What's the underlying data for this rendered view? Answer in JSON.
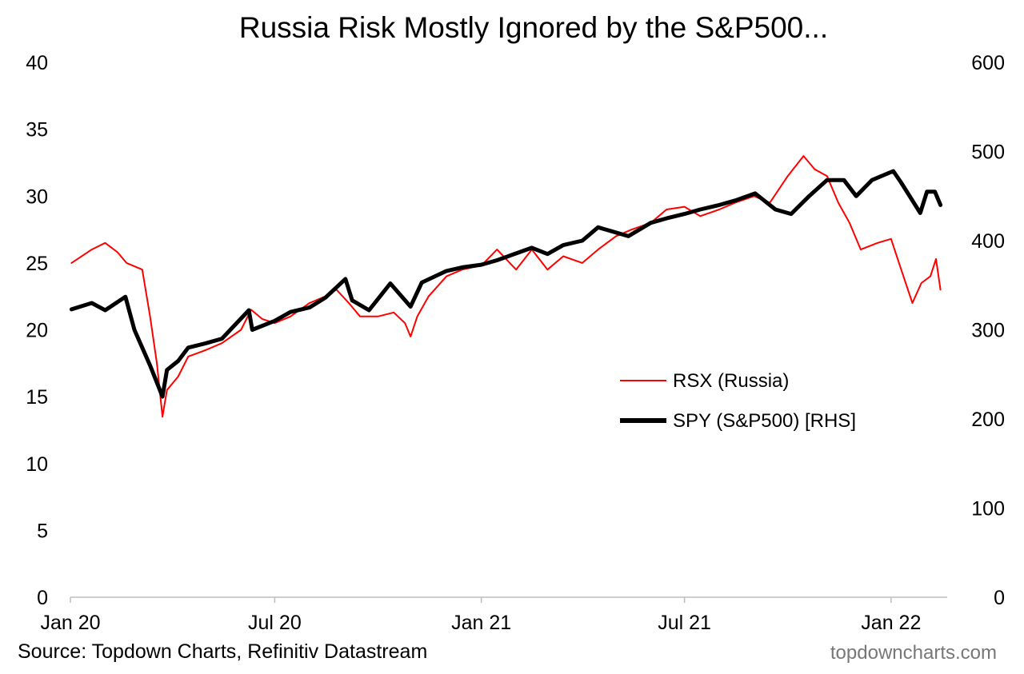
{
  "chart_data": {
    "type": "line",
    "title": "Russia Risk Mostly Ignored by the S&P500...",
    "x_tick_labels": [
      "Jan 20",
      "Jul 20",
      "Jan 21",
      "Jul 21",
      "Jan 22"
    ],
    "y_left": {
      "range": [
        0,
        40
      ],
      "ticks": [
        "0",
        "5",
        "10",
        "15",
        "20",
        "25",
        "30",
        "35",
        "40"
      ]
    },
    "y_right": {
      "range": [
        0,
        600
      ],
      "ticks": [
        "0",
        "100",
        "200",
        "300",
        "400",
        "500",
        "600"
      ]
    },
    "grid": false,
    "legend_position": "right-middle",
    "series": [
      {
        "name": "RSX (Russia)",
        "axis": "left",
        "color": "#ff0000",
        "points": [
          [
            "2020-01-02",
            25.0
          ],
          [
            "2020-01-20",
            26.0
          ],
          [
            "2020-02-01",
            26.5
          ],
          [
            "2020-02-12",
            25.8
          ],
          [
            "2020-02-20",
            25.0
          ],
          [
            "2020-03-05",
            24.5
          ],
          [
            "2020-03-12",
            21.0
          ],
          [
            "2020-03-18",
            17.5
          ],
          [
            "2020-03-23",
            13.5
          ],
          [
            "2020-03-27",
            15.5
          ],
          [
            "2020-04-06",
            16.5
          ],
          [
            "2020-04-15",
            18.0
          ],
          [
            "2020-05-01",
            18.5
          ],
          [
            "2020-05-15",
            19.0
          ],
          [
            "2020-06-01",
            20.0
          ],
          [
            "2020-06-10",
            21.5
          ],
          [
            "2020-06-20",
            20.8
          ],
          [
            "2020-07-01",
            20.5
          ],
          [
            "2020-07-15",
            21.0
          ],
          [
            "2020-08-01",
            22.0
          ],
          [
            "2020-08-15",
            22.5
          ],
          [
            "2020-08-25",
            23.0
          ],
          [
            "2020-09-05",
            22.0
          ],
          [
            "2020-09-15",
            21.0
          ],
          [
            "2020-10-01",
            21.0
          ],
          [
            "2020-10-15",
            21.3
          ],
          [
            "2020-10-25",
            20.5
          ],
          [
            "2020-10-30",
            19.5
          ],
          [
            "2020-11-05",
            21.0
          ],
          [
            "2020-11-15",
            22.5
          ],
          [
            "2020-12-01",
            24.0
          ],
          [
            "2020-12-15",
            24.5
          ],
          [
            "2021-01-01",
            24.8
          ],
          [
            "2021-01-15",
            26.0
          ],
          [
            "2021-02-01",
            24.5
          ],
          [
            "2021-02-15",
            26.0
          ],
          [
            "2021-03-01",
            24.5
          ],
          [
            "2021-03-15",
            25.5
          ],
          [
            "2021-04-01",
            25.0
          ],
          [
            "2021-04-15",
            26.0
          ],
          [
            "2021-05-01",
            27.0
          ],
          [
            "2021-05-15",
            27.5
          ],
          [
            "2021-06-01",
            28.0
          ],
          [
            "2021-06-15",
            29.0
          ],
          [
            "2021-07-01",
            29.2
          ],
          [
            "2021-07-15",
            28.5
          ],
          [
            "2021-08-01",
            29.0
          ],
          [
            "2021-08-15",
            29.5
          ],
          [
            "2021-09-01",
            30.0
          ],
          [
            "2021-09-15",
            29.5
          ],
          [
            "2021-10-01",
            31.5
          ],
          [
            "2021-10-15",
            33.0
          ],
          [
            "2021-10-25",
            32.0
          ],
          [
            "2021-11-05",
            31.5
          ],
          [
            "2021-11-15",
            29.5
          ],
          [
            "2021-11-25",
            28.0
          ],
          [
            "2021-12-05",
            26.0
          ],
          [
            "2021-12-20",
            26.5
          ],
          [
            "2022-01-01",
            26.8
          ],
          [
            "2022-01-10",
            24.5
          ],
          [
            "2022-01-20",
            22.0
          ],
          [
            "2022-01-28",
            23.5
          ],
          [
            "2022-02-05",
            24.0
          ],
          [
            "2022-02-10",
            25.3
          ],
          [
            "2022-02-14",
            23.0
          ]
        ]
      },
      {
        "name": "SPY (S&P500) [RHS]",
        "axis": "right",
        "color": "#000000",
        "points": [
          [
            "2020-01-02",
            323
          ],
          [
            "2020-01-20",
            330
          ],
          [
            "2020-02-01",
            322
          ],
          [
            "2020-02-19",
            337
          ],
          [
            "2020-02-27",
            300
          ],
          [
            "2020-03-12",
            260
          ],
          [
            "2020-03-23",
            225
          ],
          [
            "2020-03-27",
            255
          ],
          [
            "2020-04-06",
            265
          ],
          [
            "2020-04-15",
            280
          ],
          [
            "2020-05-01",
            285
          ],
          [
            "2020-05-15",
            290
          ],
          [
            "2020-06-08",
            322
          ],
          [
            "2020-06-11",
            300
          ],
          [
            "2020-07-01",
            310
          ],
          [
            "2020-07-15",
            320
          ],
          [
            "2020-08-01",
            325
          ],
          [
            "2020-08-15",
            336
          ],
          [
            "2020-09-02",
            357
          ],
          [
            "2020-09-08",
            333
          ],
          [
            "2020-09-23",
            322
          ],
          [
            "2020-10-12",
            352
          ],
          [
            "2020-10-30",
            326
          ],
          [
            "2020-11-09",
            353
          ],
          [
            "2020-12-01",
            366
          ],
          [
            "2020-12-15",
            370
          ],
          [
            "2021-01-01",
            373
          ],
          [
            "2021-01-15",
            378
          ],
          [
            "2021-02-15",
            392
          ],
          [
            "2021-03-01",
            385
          ],
          [
            "2021-03-15",
            395
          ],
          [
            "2021-04-01",
            400
          ],
          [
            "2021-04-15",
            415
          ],
          [
            "2021-05-12",
            405
          ],
          [
            "2021-06-01",
            420
          ],
          [
            "2021-06-15",
            425
          ],
          [
            "2021-07-01",
            430
          ],
          [
            "2021-07-15",
            435
          ],
          [
            "2021-08-01",
            440
          ],
          [
            "2021-08-15",
            445
          ],
          [
            "2021-09-02",
            453
          ],
          [
            "2021-09-20",
            435
          ],
          [
            "2021-10-04",
            430
          ],
          [
            "2021-10-20",
            450
          ],
          [
            "2021-11-05",
            468
          ],
          [
            "2021-11-20",
            468
          ],
          [
            "2021-12-01",
            450
          ],
          [
            "2021-12-15",
            468
          ],
          [
            "2022-01-03",
            478
          ],
          [
            "2022-01-10",
            465
          ],
          [
            "2022-01-27",
            431
          ],
          [
            "2022-02-02",
            455
          ],
          [
            "2022-02-09",
            455
          ],
          [
            "2022-02-14",
            440
          ]
        ]
      }
    ]
  },
  "footer": {
    "source": "Source: Topdown Charts, Refinitiv Datastream",
    "watermark": "topdowncharts.com"
  }
}
